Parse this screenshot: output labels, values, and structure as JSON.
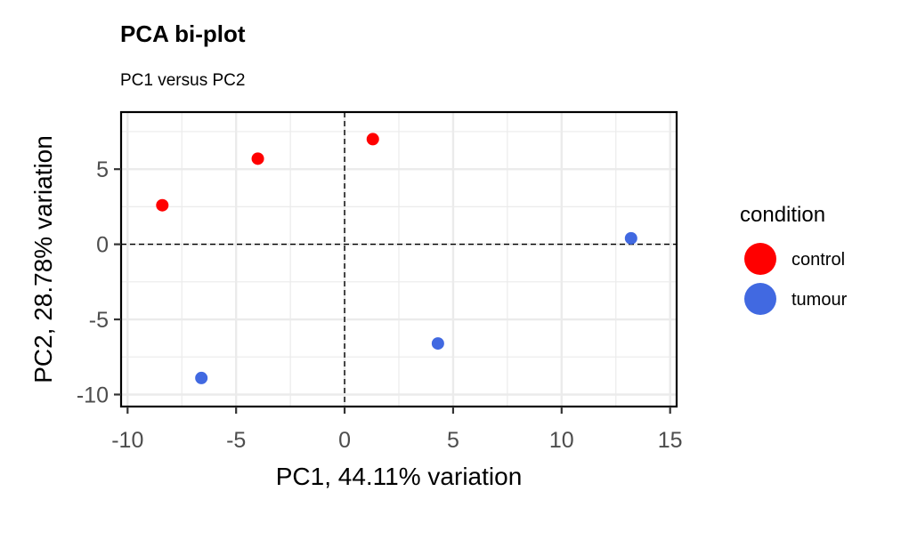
{
  "chart_data": {
    "type": "scatter",
    "title": "PCA bi-plot",
    "subtitle": "PC1 versus PC2",
    "xlabel": "PC1, 44.11% variation",
    "ylabel": "PC2, 28.78% variation",
    "xlim": [
      -10.3,
      15.3
    ],
    "ylim": [
      -10.8,
      8.8
    ],
    "xticks": [
      -10,
      -5,
      0,
      5,
      10,
      15
    ],
    "yticks": [
      -10,
      -5,
      0,
      5
    ],
    "xtick_labels": [
      "-10",
      "-5",
      "0",
      "5",
      "10",
      "15"
    ],
    "ytick_labels": [
      "-10",
      "-5",
      "0",
      "5"
    ],
    "grid": true,
    "reference_lines": {
      "x": 0,
      "y": 0,
      "style": "dashed"
    },
    "legend": {
      "title": "condition",
      "placement": "right",
      "entries": [
        {
          "label": "control",
          "color": "#ff0000"
        },
        {
          "label": "tumour",
          "color": "#4169e1"
        }
      ]
    },
    "series": [
      {
        "name": "control",
        "color": "#ff0000",
        "points": [
          {
            "x": -8.4,
            "y": 2.6
          },
          {
            "x": -4.0,
            "y": 5.7
          },
          {
            "x": 1.3,
            "y": 7.0
          }
        ]
      },
      {
        "name": "tumour",
        "color": "#4169e1",
        "points": [
          {
            "x": -6.6,
            "y": -8.9
          },
          {
            "x": 4.3,
            "y": -6.6
          },
          {
            "x": 13.2,
            "y": 0.4
          }
        ]
      }
    ]
  }
}
